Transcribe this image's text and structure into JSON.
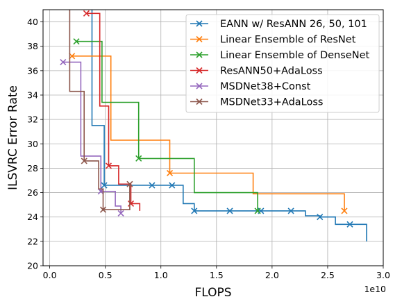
{
  "chart_data": {
    "type": "line",
    "step": "post",
    "xlabel": "FLOPS",
    "ylabel": "ILSVRC Error Rate",
    "x_offset_label": "1e10",
    "xlim": [
      -0.06,
      3.0
    ],
    "ylim": [
      20,
      41
    ],
    "x_ticks": [
      0.0,
      0.5,
      1.0,
      1.5,
      2.0,
      2.5,
      3.0
    ],
    "x_tick_labels": [
      "0.0",
      "0.5",
      "1.0",
      "1.5",
      "2.0",
      "2.5",
      "3.0"
    ],
    "y_ticks": [
      20,
      22,
      24,
      26,
      28,
      30,
      32,
      34,
      36,
      38,
      40
    ],
    "y_tick_labels": [
      "20",
      "22",
      "24",
      "26",
      "28",
      "30",
      "32",
      "34",
      "36",
      "38",
      "40"
    ],
    "grid": true,
    "legend_position": "upper right",
    "series": [
      {
        "name": "EANN w/ ResANN 26, 50, 101",
        "color": "#1f77b4",
        "x": [
          0.38,
          0.38,
          0.48,
          0.49,
          0.55,
          0.63,
          0.92,
          1.07,
          1.1,
          1.2,
          1.3,
          1.62,
          1.85,
          1.9,
          2.17,
          2.3,
          2.43,
          2.57,
          2.7,
          2.85
        ],
        "y": [
          41.2,
          31.5,
          31.5,
          26.6,
          26.6,
          26.6,
          26.6,
          26.6,
          26.6,
          25.1,
          24.5,
          24.5,
          24.5,
          24.5,
          24.5,
          24.1,
          24.0,
          23.4,
          23.4,
          22.0
        ],
        "markers": [
          [
            0.49,
            26.6
          ],
          [
            0.92,
            26.6
          ],
          [
            1.1,
            26.6
          ],
          [
            1.3,
            24.5
          ],
          [
            1.62,
            24.5
          ],
          [
            1.9,
            24.5
          ],
          [
            2.17,
            24.5
          ],
          [
            2.43,
            24.0
          ],
          [
            2.7,
            23.4
          ]
        ]
      },
      {
        "name": "Linear Ensemble of ResNet",
        "color": "#ff7f0e",
        "x": [
          0.2,
          0.55,
          0.55,
          1.08,
          1.08,
          1.83,
          1.83,
          2.65,
          2.65
        ],
        "y": [
          37.2,
          37.2,
          30.3,
          30.3,
          27.6,
          27.6,
          25.9,
          25.9,
          24.5
        ],
        "markers": [
          [
            0.2,
            37.2
          ],
          [
            1.08,
            27.6
          ],
          [
            2.65,
            24.5
          ]
        ]
      },
      {
        "name": "Linear Ensemble of DenseNet",
        "color": "#2ca02c",
        "x": [
          0.24,
          0.47,
          0.47,
          0.8,
          0.8,
          1.3,
          1.3,
          1.87,
          1.87
        ],
        "y": [
          38.4,
          38.4,
          33.4,
          33.4,
          28.8,
          28.8,
          26.0,
          26.0,
          24.5
        ],
        "markers": [
          [
            0.24,
            38.4
          ],
          [
            0.8,
            28.8
          ],
          [
            1.87,
            24.5
          ]
        ]
      },
      {
        "name": "ResANN50+AdaLoss",
        "color": "#d62728",
        "x": [
          0.33,
          0.45,
          0.45,
          0.53,
          0.53,
          0.62,
          0.62,
          0.73,
          0.73,
          0.81,
          0.81
        ],
        "y": [
          40.7,
          40.7,
          33.1,
          33.1,
          28.2,
          28.2,
          26.7,
          26.7,
          25.1,
          25.1,
          24.5
        ],
        "markers": [
          [
            0.33,
            40.7
          ],
          [
            0.53,
            28.2
          ],
          [
            0.73,
            25.1
          ]
        ]
      },
      {
        "name": "MSDNet38+Const",
        "color": "#9467bd",
        "x": [
          0.12,
          0.28,
          0.28,
          0.46,
          0.46,
          0.59,
          0.59,
          0.64
        ],
        "y": [
          36.7,
          36.7,
          29.0,
          29.0,
          26.1,
          26.1,
          24.9,
          24.3
        ],
        "markers": [
          [
            0.12,
            36.7
          ],
          [
            0.46,
            26.1
          ],
          [
            0.64,
            24.3
          ]
        ]
      },
      {
        "name": "MSDNet33+AdaLoss",
        "color": "#8c564b",
        "x": [
          0.18,
          0.18,
          0.31,
          0.31,
          0.44,
          0.44,
          0.48,
          0.48,
          0.72
        ],
        "y": [
          41.2,
          34.3,
          34.3,
          28.6,
          28.6,
          26.3,
          26.3,
          24.6,
          26.7
        ],
        "markers": [
          [
            0.31,
            28.6
          ],
          [
            0.48,
            24.6
          ],
          [
            0.72,
            26.7
          ]
        ]
      }
    ]
  }
}
